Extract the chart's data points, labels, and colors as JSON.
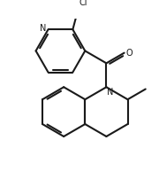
{
  "background_color": "#ffffff",
  "line_color": "#1a1a1a",
  "line_width": 1.5,
  "text_color": "#1a1a1a",
  "figsize": [
    1.8,
    2.11
  ],
  "dpi": 100,
  "xlim": [
    0,
    9
  ],
  "ylim": [
    0,
    10.55
  ]
}
